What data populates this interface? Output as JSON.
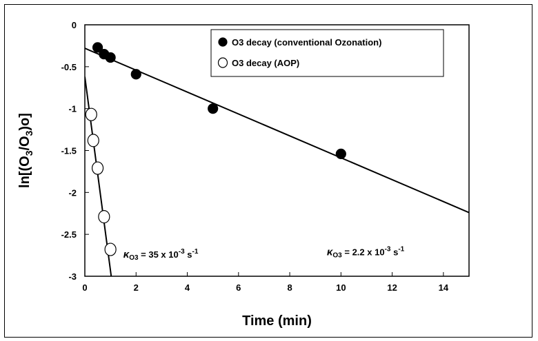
{
  "chart_data": {
    "type": "scatter",
    "xlabel": "Time (min)",
    "ylabel_parts": [
      "ln[(O",
      "3",
      "/O",
      "3",
      ")o]"
    ],
    "xlim": [
      0,
      15
    ],
    "ylim": [
      -3,
      0
    ],
    "xticks": [
      0,
      2,
      4,
      6,
      8,
      10,
      12,
      14
    ],
    "yticks": [
      0,
      -0.5,
      -1,
      -1.5,
      -2,
      -2.5,
      -3
    ],
    "xtick_labels": [
      "0",
      "2",
      "4",
      "6",
      "8",
      "10",
      "12",
      "14"
    ],
    "ytick_labels": [
      "0",
      "-0.5",
      "-1",
      "-1.5",
      "-2",
      "-2.5",
      "-3"
    ],
    "legend_position": "top-right",
    "series": [
      {
        "name": "O3 decay (conventional Ozonation)",
        "marker": "filled-circle",
        "x": [
          0.5,
          0.75,
          1,
          2,
          5,
          10
        ],
        "y": [
          -0.27,
          -0.35,
          -0.39,
          -0.59,
          -1.0,
          -1.54
        ],
        "fit": {
          "x": [
            0,
            15
          ],
          "y": [
            -0.28,
            -2.24
          ]
        }
      },
      {
        "name": "O3 decay (AOP)",
        "marker": "open-circle",
        "x": [
          0.25,
          0.33,
          0.5,
          0.75,
          1.0
        ],
        "y": [
          -1.07,
          -1.38,
          -1.71,
          -2.29,
          -2.68
        ],
        "fit": {
          "x": [
            0,
            1.03
          ],
          "y": [
            -0.62,
            -3.0
          ]
        }
      }
    ],
    "annotations": [
      {
        "k": "κ",
        "sub": "O3",
        "text": " = 35 x 10",
        "exp": "-3",
        "unit": " s",
        "unit_exp": "-1",
        "anchor_x": 1.5,
        "anchor_y": -2.78
      },
      {
        "k": "κ",
        "sub": "O3",
        "text": " = 2.2 x 10",
        "exp": "-3",
        "unit": " s",
        "unit_exp": "-1",
        "anchor_x": 9.45,
        "anchor_y": -2.75
      }
    ]
  }
}
